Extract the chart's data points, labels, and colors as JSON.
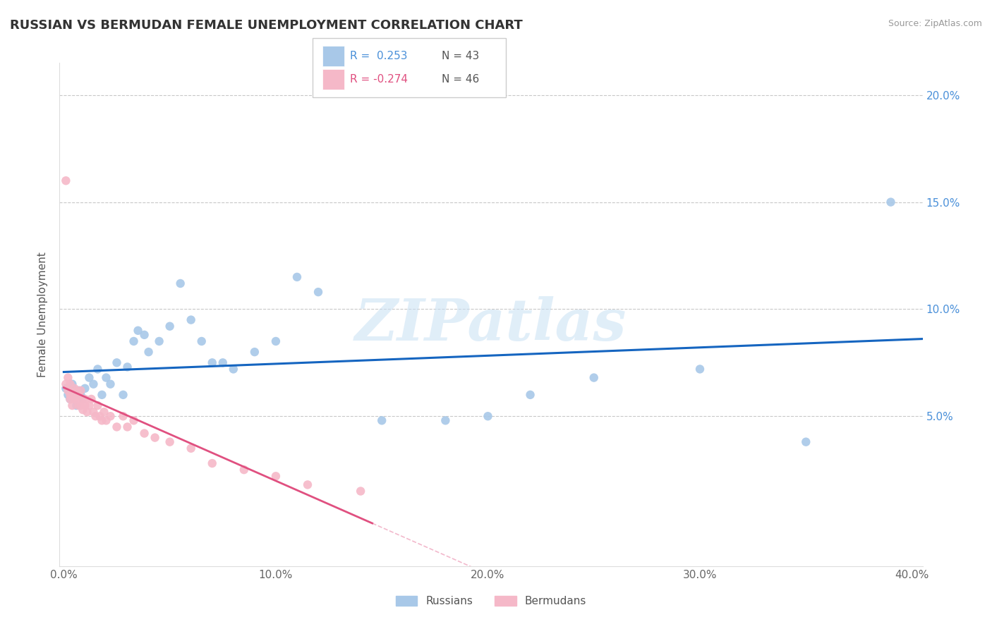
{
  "title": "RUSSIAN VS BERMUDAN FEMALE UNEMPLOYMENT CORRELATION CHART",
  "source": "Source: ZipAtlas.com",
  "ylabel": "Female Unemployment",
  "xlim": [
    -0.002,
    0.405
  ],
  "ylim": [
    -0.02,
    0.215
  ],
  "plot_xlim": [
    0.0,
    0.405
  ],
  "plot_ylim": [
    0.0,
    0.215
  ],
  "xticks": [
    0.0,
    0.1,
    0.2,
    0.3,
    0.4
  ],
  "xticklabels": [
    "0.0%",
    "10.0%",
    "20.0%",
    "30.0%",
    "40.0%"
  ],
  "yticks": [
    0.05,
    0.1,
    0.15,
    0.2
  ],
  "yticklabels": [
    "5.0%",
    "10.0%",
    "15.0%",
    "20.0%"
  ],
  "watermark": "ZIPatlas",
  "blue_color": "#a8c8e8",
  "pink_color": "#f5b8c8",
  "blue_line_color": "#1565C0",
  "pink_line_color": "#e05080",
  "background_color": "#ffffff",
  "grid_color": "#c8c8c8",
  "russians_x": [
    0.001,
    0.002,
    0.003,
    0.004,
    0.005,
    0.006,
    0.007,
    0.008,
    0.009,
    0.01,
    0.012,
    0.014,
    0.016,
    0.018,
    0.02,
    0.022,
    0.025,
    0.028,
    0.03,
    0.033,
    0.035,
    0.038,
    0.04,
    0.045,
    0.05,
    0.055,
    0.06,
    0.065,
    0.07,
    0.075,
    0.08,
    0.09,
    0.1,
    0.11,
    0.12,
    0.15,
    0.18,
    0.2,
    0.22,
    0.25,
    0.3,
    0.35,
    0.39
  ],
  "russians_y": [
    0.063,
    0.06,
    0.058,
    0.065,
    0.06,
    0.055,
    0.062,
    0.06,
    0.058,
    0.063,
    0.068,
    0.065,
    0.072,
    0.06,
    0.068,
    0.065,
    0.075,
    0.06,
    0.073,
    0.085,
    0.09,
    0.088,
    0.08,
    0.085,
    0.092,
    0.112,
    0.095,
    0.085,
    0.075,
    0.075,
    0.072,
    0.08,
    0.085,
    0.115,
    0.108,
    0.048,
    0.048,
    0.05,
    0.06,
    0.068,
    0.072,
    0.038,
    0.15
  ],
  "bermudans_x": [
    0.001,
    0.001,
    0.002,
    0.002,
    0.003,
    0.003,
    0.003,
    0.004,
    0.004,
    0.005,
    0.005,
    0.005,
    0.006,
    0.006,
    0.007,
    0.007,
    0.008,
    0.008,
    0.009,
    0.009,
    0.01,
    0.01,
    0.011,
    0.012,
    0.013,
    0.014,
    0.015,
    0.016,
    0.017,
    0.018,
    0.019,
    0.02,
    0.022,
    0.025,
    0.028,
    0.03,
    0.033,
    0.038,
    0.043,
    0.05,
    0.06,
    0.07,
    0.085,
    0.1,
    0.115,
    0.14
  ],
  "bermudans_y": [
    0.16,
    0.065,
    0.062,
    0.068,
    0.06,
    0.058,
    0.065,
    0.06,
    0.055,
    0.063,
    0.06,
    0.058,
    0.062,
    0.058,
    0.06,
    0.055,
    0.055,
    0.062,
    0.058,
    0.053,
    0.055,
    0.058,
    0.052,
    0.055,
    0.058,
    0.052,
    0.05,
    0.055,
    0.05,
    0.048,
    0.052,
    0.048,
    0.05,
    0.045,
    0.05,
    0.045,
    0.048,
    0.042,
    0.04,
    0.038,
    0.035,
    0.028,
    0.025,
    0.022,
    0.018,
    0.015
  ]
}
